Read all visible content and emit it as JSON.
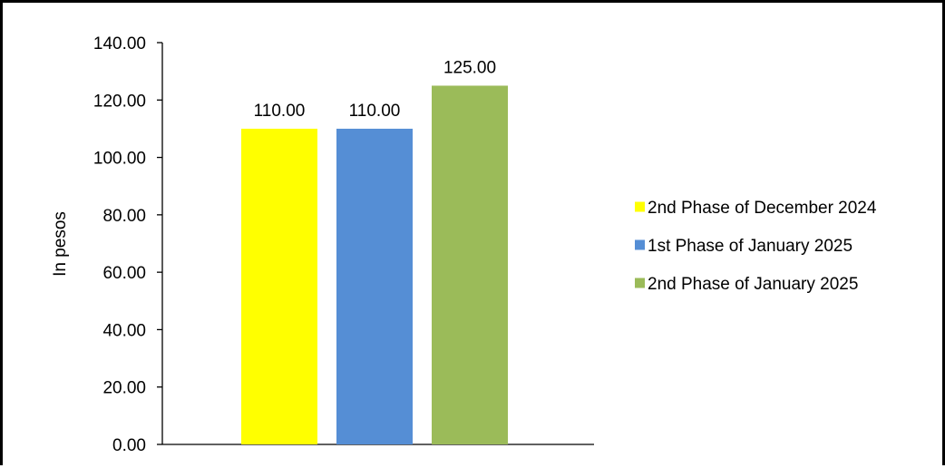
{
  "chart_data": {
    "type": "bar",
    "title": "",
    "xlabel": "",
    "ylabel": "In pesos",
    "ylim": [
      0,
      140
    ],
    "yticks": [
      "0.00",
      "20.00",
      "40.00",
      "60.00",
      "80.00",
      "100.00",
      "120.00",
      "140.00"
    ],
    "grid": false,
    "legend_position": "right",
    "series": [
      {
        "name": "2nd Phase of December 2024",
        "value": 110,
        "label": "110.00",
        "color": "#FFFF00"
      },
      {
        "name": "1st Phase of January 2025",
        "value": 110,
        "label": "110.00",
        "color": "#558ED5"
      },
      {
        "name": "2nd Phase of January 2025",
        "value": 125,
        "label": "125.00",
        "color": "#9BBB59"
      }
    ]
  }
}
